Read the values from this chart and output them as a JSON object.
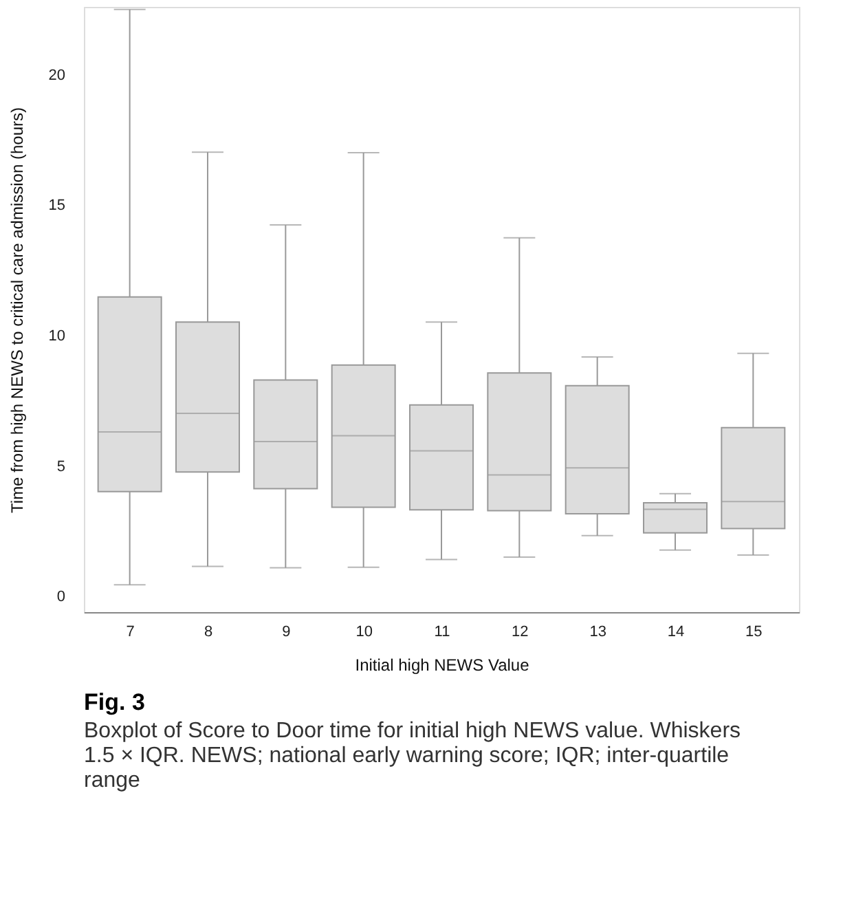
{
  "chart_data": {
    "type": "box",
    "title": "Fig. 3",
    "subtitle": "Boxplot of Score to Door time for initial high NEWS value. Whiskers 1.5 × IQR. NEWS; national early warning score; IQR; inter-quartile range",
    "xlabel": "Initial high NEWS Value",
    "ylabel": "Time from high NEWS to critical care admission (hours)",
    "categories": [
      "7",
      "8",
      "9",
      "10",
      "11",
      "12",
      "13",
      "14",
      "15"
    ],
    "color": "#dddddd",
    "boxes": [
      {
        "low": 0.45,
        "q1": 4.02,
        "median": 6.31,
        "q3": 11.48,
        "high": 22.5
      },
      {
        "low": 1.15,
        "q1": 4.77,
        "median": 7.02,
        "q3": 10.52,
        "high": 17.03
      },
      {
        "low": 1.1,
        "q1": 4.13,
        "median": 5.94,
        "q3": 8.3,
        "high": 14.24
      },
      {
        "low": 1.12,
        "q1": 3.42,
        "median": 6.16,
        "q3": 8.87,
        "high": 17.01
      },
      {
        "low": 1.42,
        "q1": 3.32,
        "median": 5.58,
        "q3": 7.34,
        "high": 10.52
      },
      {
        "low": 1.51,
        "q1": 3.29,
        "median": 4.66,
        "q3": 8.57,
        "high": 13.75
      },
      {
        "low": 2.33,
        "q1": 3.17,
        "median": 4.93,
        "q3": 8.08,
        "high": 9.18
      },
      {
        "low": 1.78,
        "q1": 2.44,
        "median": 3.34,
        "q3": 3.59,
        "high": 3.94
      },
      {
        "low": 1.59,
        "q1": 2.6,
        "median": 3.64,
        "q3": 6.47,
        "high": 9.32
      }
    ],
    "ylim": [
      -0.6,
      22.6
    ],
    "yticks": [
      0,
      5,
      10,
      15,
      20
    ],
    "grid": false
  }
}
